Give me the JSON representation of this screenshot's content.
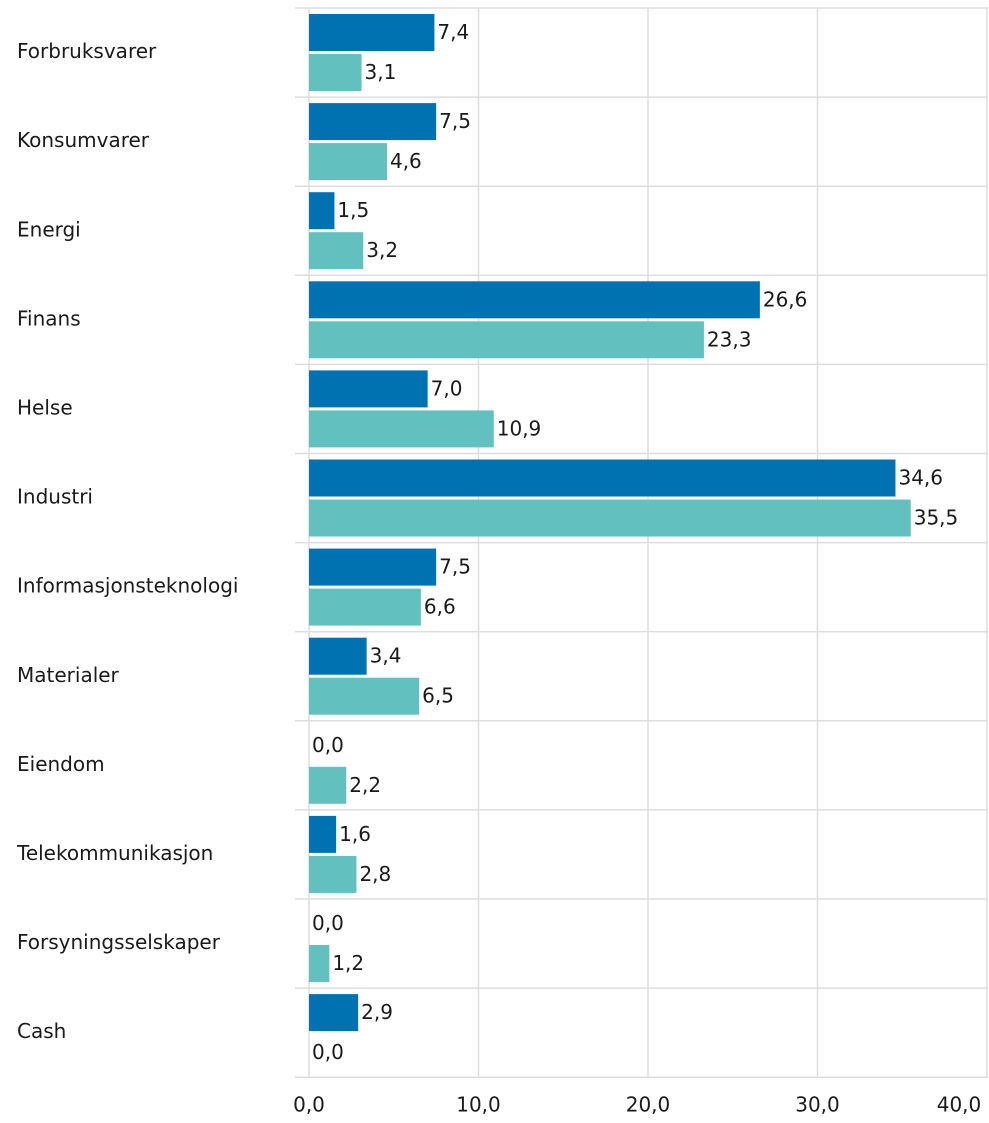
{
  "chart_data": {
    "type": "hbar",
    "categories": [
      "Forbruksvarer",
      "Konsumvarer",
      "Energi",
      "Finans",
      "Helse",
      "Industri",
      "Informasjonsteknologi",
      "Materialer",
      "Eiendom",
      "Telekommunikasjon",
      "Forsyningsselskaper",
      "Cash"
    ],
    "series": [
      {
        "color": "#0072b1",
        "values": [
          7.4,
          7.5,
          1.5,
          26.6,
          7.0,
          34.6,
          7.5,
          3.4,
          0.0,
          1.6,
          0.0,
          2.9
        ],
        "value_labels": [
          "7,4",
          "7,5",
          "1,5",
          "26,6",
          "7,0",
          "34,6",
          "7,5",
          "3,4",
          "0,0",
          "1,6",
          "0,0",
          "2,9"
        ]
      },
      {
        "color": "#62c1bf",
        "values": [
          3.1,
          4.6,
          3.2,
          23.3,
          10.9,
          35.5,
          6.6,
          6.5,
          2.2,
          2.8,
          1.2,
          0.0
        ],
        "value_labels": [
          "3,1",
          "4,6",
          "3,2",
          "23,3",
          "10,9",
          "35,5",
          "6,6",
          "6,5",
          "2,2",
          "2,8",
          "1,2",
          "0,0"
        ]
      }
    ],
    "xlim": [
      0,
      40
    ],
    "xticks": [
      {
        "value": 0,
        "label": "0,0"
      },
      {
        "value": 10,
        "label": "10,0"
      },
      {
        "value": 20,
        "label": "20,0"
      },
      {
        "value": 30,
        "label": "30,0"
      },
      {
        "value": 40,
        "label": "40,0"
      }
    ],
    "grid": true
  }
}
